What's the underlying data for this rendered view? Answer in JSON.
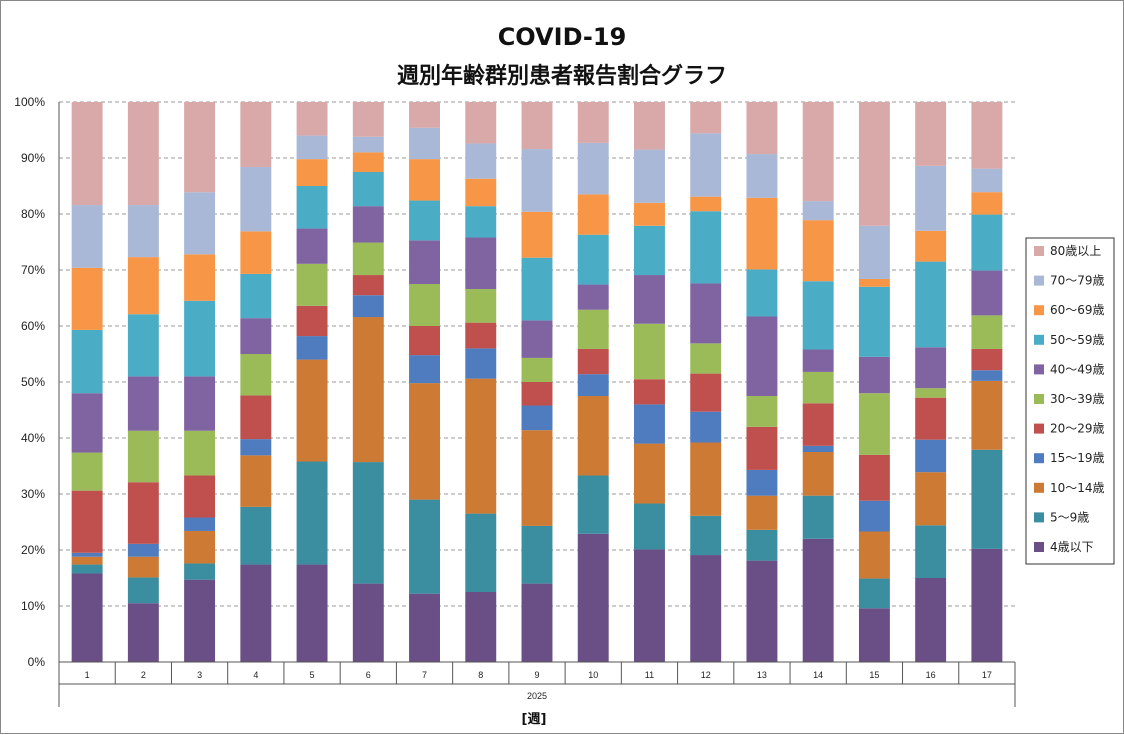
{
  "chart_data": {
    "type": "bar",
    "stacked": true,
    "title_line1": "COVID-19",
    "title_line2": "週別年齢群別患者報告割合グラフ",
    "year_label": "2025",
    "xlabel": "[週]",
    "ylabel": "",
    "ylim": [
      0,
      100
    ],
    "y_ticks": [
      "0%",
      "10%",
      "20%",
      "30%",
      "40%",
      "50%",
      "60%",
      "70%",
      "80%",
      "90%",
      "100%"
    ],
    "grid": true,
    "legend_position": "right",
    "categories": [
      "1",
      "2",
      "3",
      "4",
      "5",
      "6",
      "7",
      "8",
      "9",
      "10",
      "11",
      "12",
      "13",
      "14",
      "15",
      "16",
      "17"
    ],
    "series": [
      {
        "name": "4歳以下",
        "color": "#6a4f87",
        "values": [
          15.8,
          10.5,
          14.7,
          17.4,
          17.4,
          14.0,
          12.2,
          12.5,
          14.0,
          22.9,
          20.1,
          19.1,
          18.1,
          22.0,
          9.6,
          15.0,
          20.2
        ]
      },
      {
        "name": "5～9歳",
        "color": "#3b8da0",
        "values": [
          1.6,
          4.6,
          2.9,
          10.3,
          18.4,
          21.7,
          16.8,
          14.0,
          10.3,
          10.4,
          8.2,
          7.0,
          5.5,
          7.7,
          5.3,
          9.4,
          17.7
        ]
      },
      {
        "name": "10～14歳",
        "color": "#cc7a34",
        "values": [
          1.4,
          3.7,
          5.8,
          9.2,
          18.2,
          25.9,
          20.8,
          24.1,
          17.1,
          14.2,
          10.7,
          13.1,
          6.1,
          7.8,
          8.4,
          9.5,
          12.3
        ]
      },
      {
        "name": "15～19歳",
        "color": "#4f7bbf",
        "values": [
          0.7,
          2.3,
          2.4,
          2.9,
          4.2,
          3.9,
          5.0,
          5.4,
          4.4,
          3.9,
          7.0,
          5.5,
          4.6,
          1.1,
          5.5,
          5.8,
          1.9
        ]
      },
      {
        "name": "20～29歳",
        "color": "#c0504d",
        "values": [
          11.1,
          11.0,
          7.5,
          7.8,
          5.4,
          3.6,
          5.2,
          4.6,
          4.2,
          4.5,
          4.5,
          6.8,
          7.7,
          7.6,
          8.2,
          7.5,
          3.8
        ]
      },
      {
        "name": "30～39歳",
        "color": "#9bbb59",
        "values": [
          6.8,
          9.2,
          8.0,
          7.4,
          7.5,
          5.8,
          7.5,
          6.0,
          4.3,
          7.0,
          9.9,
          5.4,
          5.5,
          5.6,
          11.0,
          1.7,
          6.0
        ]
      },
      {
        "name": "40～49歳",
        "color": "#8064a2",
        "values": [
          10.6,
          9.7,
          9.7,
          6.4,
          6.3,
          6.5,
          7.8,
          9.2,
          6.7,
          4.5,
          8.7,
          10.7,
          14.2,
          4.0,
          6.5,
          7.3,
          8.0
        ]
      },
      {
        "name": "50～59歳",
        "color": "#4bacc6",
        "values": [
          11.3,
          11.1,
          13.5,
          7.9,
          7.6,
          6.1,
          7.1,
          5.6,
          11.2,
          8.9,
          8.8,
          12.9,
          8.4,
          12.2,
          12.5,
          15.3,
          10.0
        ]
      },
      {
        "name": "60～69歳",
        "color": "#f79646",
        "values": [
          11.1,
          10.2,
          8.3,
          7.6,
          4.8,
          3.5,
          7.4,
          4.9,
          8.2,
          7.2,
          4.1,
          2.6,
          12.8,
          10.9,
          1.4,
          5.5,
          4.0
        ]
      },
      {
        "name": "70～79歳",
        "color": "#a9b8d6",
        "values": [
          11.2,
          9.3,
          11.1,
          11.5,
          4.2,
          2.8,
          5.6,
          6.3,
          11.2,
          9.2,
          9.5,
          11.3,
          7.8,
          3.4,
          9.5,
          11.6,
          4.2
        ]
      },
      {
        "name": "80歳以上",
        "color": "#d9a8a8",
        "values": [
          18.4,
          18.4,
          16.1,
          11.6,
          6.0,
          6.2,
          4.6,
          7.4,
          8.4,
          7.3,
          8.5,
          5.6,
          9.3,
          17.7,
          22.1,
          11.4,
          11.9
        ]
      }
    ]
  }
}
